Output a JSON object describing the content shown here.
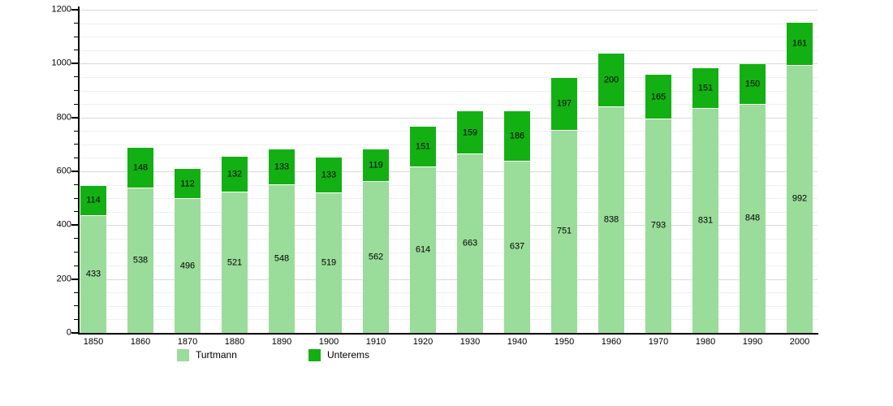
{
  "chart_data": {
    "type": "bar",
    "stacked": true,
    "title": "",
    "xlabel": "",
    "ylabel": "",
    "categories": [
      "1850",
      "1860",
      "1870",
      "1880",
      "1890",
      "1900",
      "1910",
      "1920",
      "1930",
      "1940",
      "1950",
      "1960",
      "1970",
      "1980",
      "1990",
      "2000"
    ],
    "series": [
      {
        "name": "Turtmann",
        "color": "#9adc9a",
        "values": [
          433,
          538,
          496,
          521,
          548,
          519,
          562,
          614,
          663,
          637,
          751,
          838,
          793,
          831,
          848,
          992
        ]
      },
      {
        "name": "Unterems",
        "color": "#13b013",
        "values": [
          114,
          148,
          112,
          132,
          133,
          133,
          119,
          151,
          159,
          186,
          197,
          200,
          165,
          151,
          150,
          161
        ]
      }
    ],
    "ylim": [
      0,
      1200
    ],
    "ytick_step_major": 200,
    "ytick_step_minor": 50,
    "ytick_labels": [
      "0",
      "200",
      "400",
      "600",
      "800",
      "1000",
      "1200"
    ],
    "grid": true,
    "legend_position": "bottom",
    "value_labels": "inside-segments",
    "axis_color": "#000000",
    "background_color": "#ffffff"
  }
}
